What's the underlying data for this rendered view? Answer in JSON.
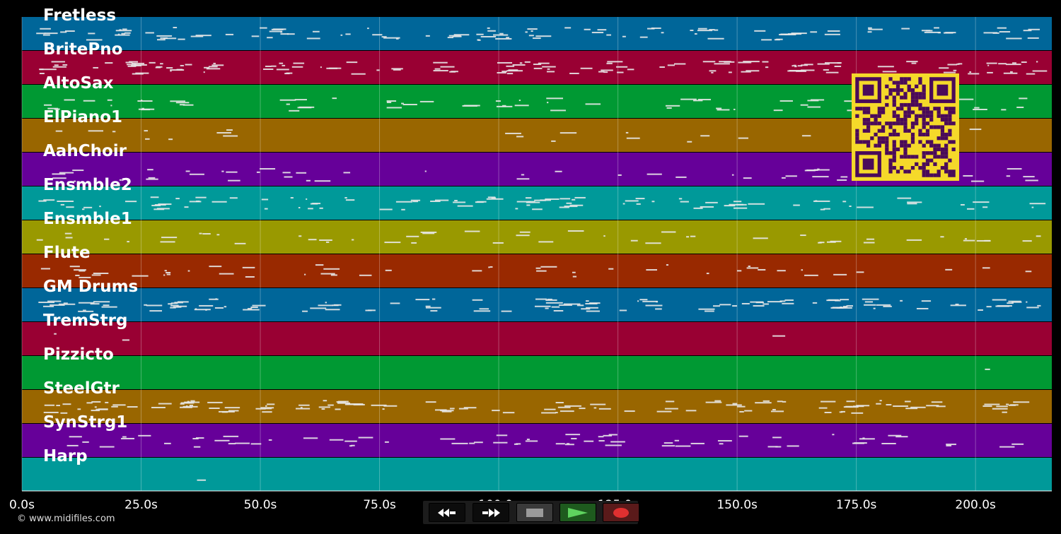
{
  "tracks": [
    {
      "name": "Fretless",
      "color": "#006699"
    },
    {
      "name": "BritePno",
      "color": "#990033"
    },
    {
      "name": "AltoSax",
      "color": "#009933"
    },
    {
      "name": "ElPiano1",
      "color": "#996600"
    },
    {
      "name": "AahChoir",
      "color": "#660099"
    },
    {
      "name": "Ensmble2",
      "color": "#009999"
    },
    {
      "name": "Ensmble1",
      "color": "#999900"
    },
    {
      "name": "Flute",
      "color": "#992900"
    },
    {
      "name": "GM Drums",
      "color": "#006699"
    },
    {
      "name": "TremStrg",
      "color": "#990033"
    },
    {
      "name": "Pizzicto",
      "color": "#009933"
    },
    {
      "name": "SteelGtr",
      "color": "#996600"
    },
    {
      "name": "SynStrg1",
      "color": "#660099"
    },
    {
      "name": "Harp",
      "color": "#009999"
    }
  ],
  "time_axis": {
    "min_s": 0,
    "max_s": 216,
    "ticks": [
      {
        "value": 0,
        "label": "0.0s"
      },
      {
        "value": 25,
        "label": "25.0s"
      },
      {
        "value": 50,
        "label": "50.0s"
      },
      {
        "value": 75,
        "label": "75.0s"
      },
      {
        "value": 100,
        "label": "100.0s"
      },
      {
        "value": 125,
        "label": "125.0s"
      },
      {
        "value": 150,
        "label": "150.0s"
      },
      {
        "value": 175,
        "label": "175.0s"
      },
      {
        "value": 200,
        "label": "200.0s"
      }
    ]
  },
  "transport": {
    "rewind_icon": "rewind-icon",
    "ffwd_icon": "fast-forward-icon",
    "stop_icon": "stop-icon",
    "play_icon": "play-icon",
    "record_icon": "record-icon"
  },
  "copyright": "© www.midifiles.com",
  "qr_colors": {
    "fg": "#4a0a5a",
    "bg": "#f5d92a"
  }
}
